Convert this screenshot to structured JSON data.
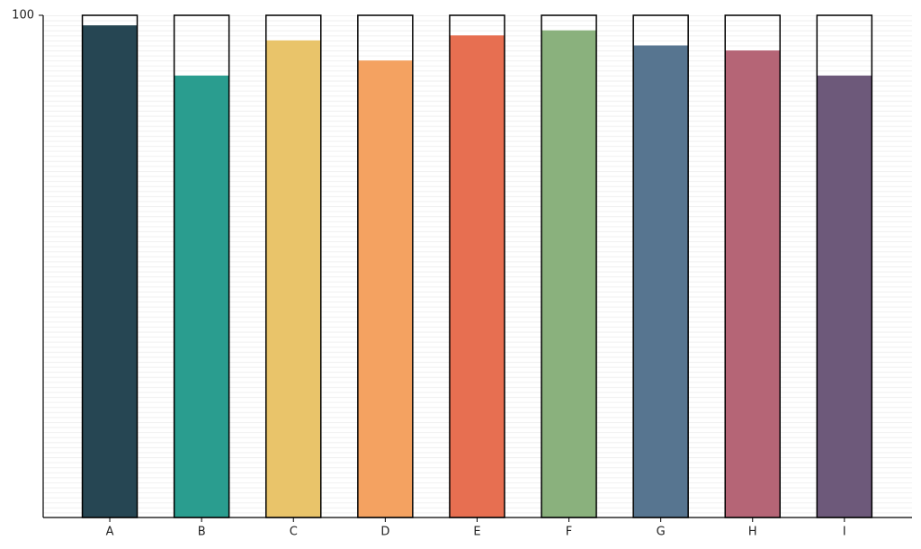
{
  "chart_data": {
    "type": "bar",
    "categories": [
      "A",
      "B",
      "C",
      "D",
      "E",
      "F",
      "G",
      "H",
      "I"
    ],
    "values": [
      98,
      88,
      95,
      91,
      96,
      97,
      94,
      93,
      88
    ],
    "colors": [
      "#264653",
      "#2a9d8f",
      "#e9c46a",
      "#f4a261",
      "#e76f51",
      "#8ab17d",
      "#577590",
      "#b56576",
      "#6d597a"
    ],
    "ylim": [
      0,
      100
    ],
    "yticks": [
      100
    ]
  }
}
